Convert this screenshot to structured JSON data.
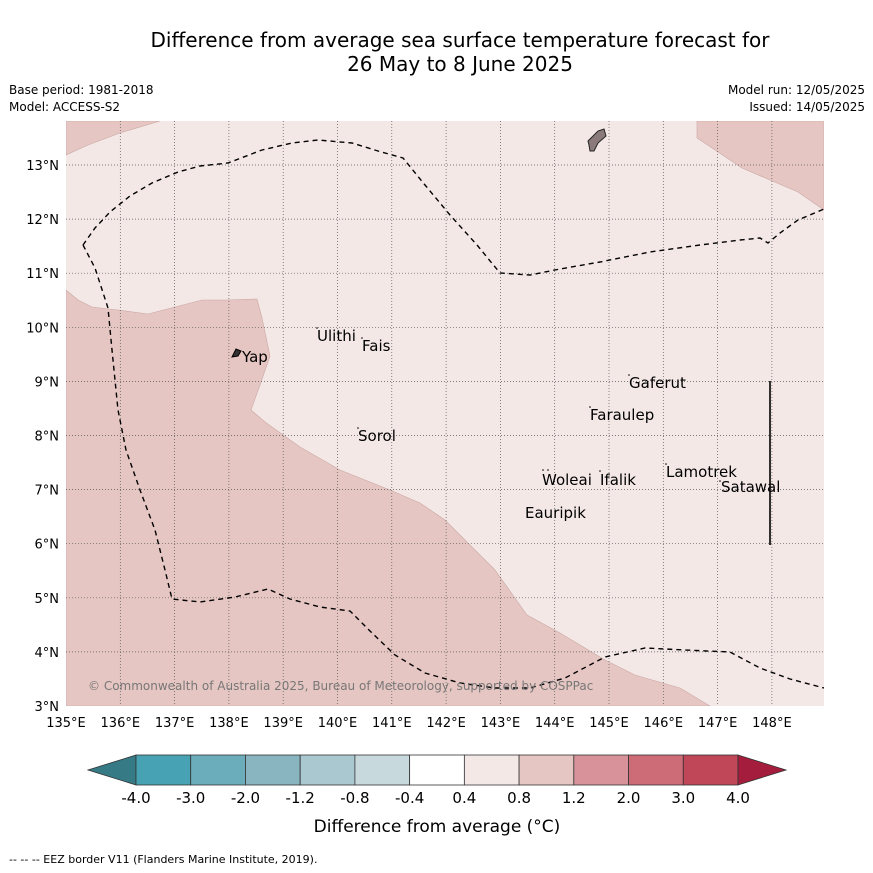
{
  "title": {
    "line1": "Difference from average sea surface temperature forecast for",
    "line2": "26 May to 8 June 2025"
  },
  "meta": {
    "base_period": "Base period: 1981-2018",
    "model": "Model: ACCESS-S2",
    "model_run": "Model run: 12/05/2025",
    "issued": "Issued: 14/05/2025"
  },
  "map": {
    "lon_labels": [
      "135°E",
      "136°E",
      "137°E",
      "138°E",
      "139°E",
      "140°E",
      "141°E",
      "142°E",
      "143°E",
      "144°E",
      "145°E",
      "146°E",
      "147°E",
      "148°E"
    ],
    "lat_labels": [
      "3°N",
      "4°N",
      "5°N",
      "6°N",
      "7°N",
      "8°N",
      "9°N",
      "10°N",
      "11°N",
      "12°N",
      "13°N"
    ],
    "places": [
      "Ulithi",
      "Fais",
      "Yap",
      "Gaferut",
      "Faraulep",
      "Sorol",
      "Woleai",
      "Ifalik",
      "Lamotrek",
      "Satawal",
      "Eauripik"
    ],
    "copyright": "© Commonwealth of Australia 2025, Bureau of Meteorology, supported by COSPPac",
    "colors": {
      "band_0.4_0.8": "#f4e8e7",
      "band_0.8_1.2": "#e6c6c2",
      "land": "#8a7a7a"
    }
  },
  "legend": {
    "title": "Difference from average (°C)",
    "ticks": [
      "-4.0",
      "-3.0",
      "-2.0",
      "-1.2",
      "-0.8",
      "-0.4",
      "0.4",
      "0.8",
      "1.2",
      "2.0",
      "3.0",
      "4.0"
    ],
    "colors": [
      "#357a85",
      "#47a3b4",
      "#6badbb",
      "#89b5c1",
      "#a9c8cf",
      "#c8d9dd",
      "#ffffff",
      "#f4e8e7",
      "#e6c6c2",
      "#d7929a",
      "#cd6b77",
      "#bf4758",
      "#a41d3c"
    ]
  },
  "footnote": "--  --  -- EEZ border V11 (Flanders Marine Institute, 2019)."
}
